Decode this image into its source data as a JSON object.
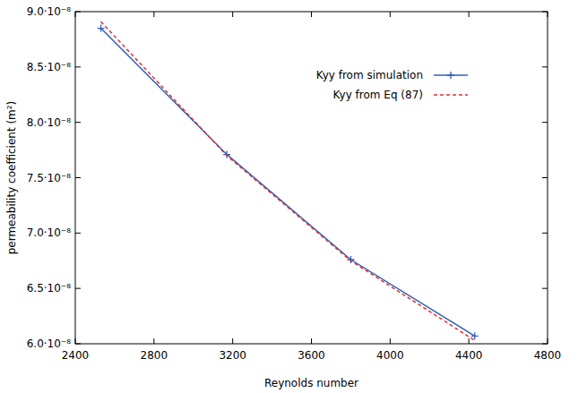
{
  "chart_data": {
    "type": "line",
    "x_label": "Reynolds number",
    "y_label": "permeability coefficient (m²)",
    "x": [
      2530,
      3170,
      3800,
      4430
    ],
    "series": [
      {
        "name": "Kyy from simulation",
        "color": "#2f5fb8",
        "marker": "plus",
        "line_style": "solid",
        "values": [
          8.85e-08,
          7.71e-08,
          6.76e-08,
          6.07e-08
        ]
      },
      {
        "name": "Kyy from Eq (87)",
        "color": "#e03030",
        "marker": "none",
        "line_style": "dashed",
        "values": [
          8.91e-08,
          7.7e-08,
          6.75e-08,
          6.03e-08
        ]
      }
    ],
    "xlim": [
      2400,
      4800
    ],
    "xticks": [
      2400,
      2800,
      3200,
      3600,
      4000,
      4400,
      4800
    ],
    "ylim": [
      6e-08,
      9e-08
    ],
    "yticks": [
      {
        "value": 6e-08,
        "label": "6.0·10⁻⁸"
      },
      {
        "value": 6.5e-08,
        "label": "6.5·10⁻⁸"
      },
      {
        "value": 7e-08,
        "label": "7.0·10⁻⁸"
      },
      {
        "value": 7.5e-08,
        "label": "7.5·10⁻⁸"
      },
      {
        "value": 8e-08,
        "label": "8.0·10⁻⁸"
      },
      {
        "value": 8.5e-08,
        "label": "8.5·10⁻⁸"
      },
      {
        "value": 9e-08,
        "label": "9.0·10⁻⁸"
      }
    ],
    "grid": false,
    "legend": "upper-right"
  }
}
